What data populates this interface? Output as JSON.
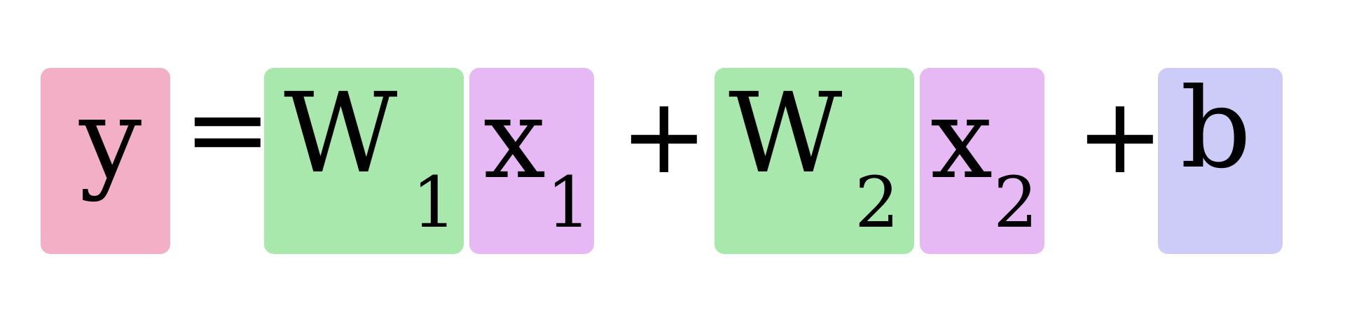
{
  "colors": {
    "y": "#f2afc6",
    "W": "#a8e8ad",
    "x": "#e6b8f4",
    "b": "#cdccf8"
  },
  "equation": {
    "y": "y",
    "equals": "=",
    "W1": {
      "base": "W",
      "sub": "1"
    },
    "x1": {
      "base": "x",
      "sub": "1"
    },
    "plus1": "+",
    "W2": {
      "base": "W",
      "sub": "2"
    },
    "x2": {
      "base": "x",
      "sub": "2"
    },
    "plus2": "+",
    "b": "b"
  }
}
